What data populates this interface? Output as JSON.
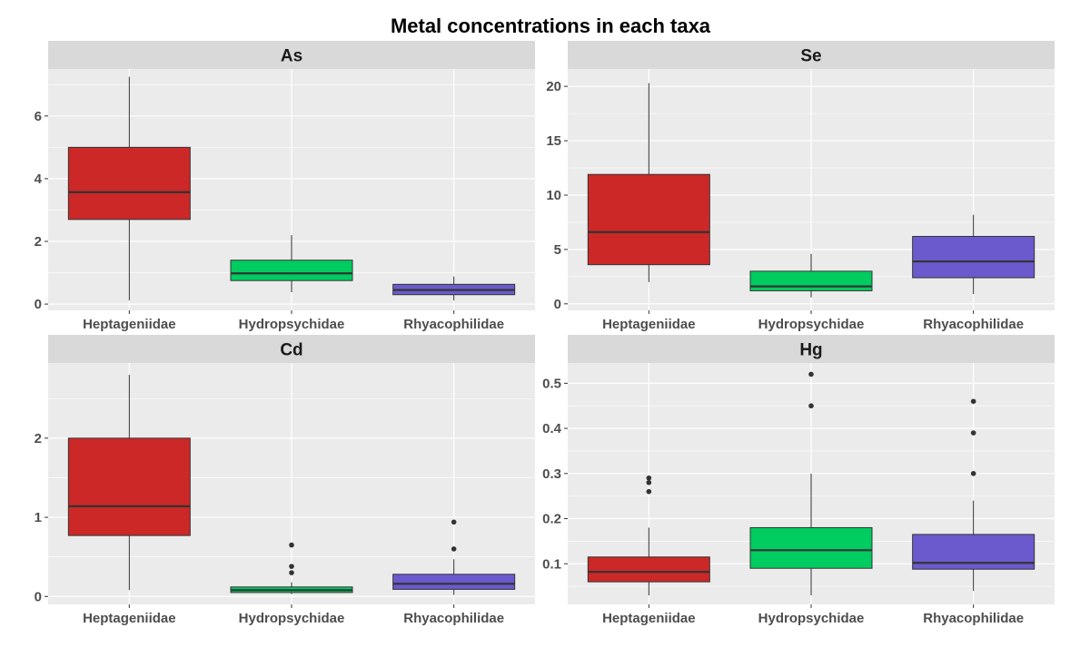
{
  "chart_data": {
    "type": "boxplot",
    "title": "Metal concentrations in each taxa",
    "categories": [
      "Heptageniidae",
      "Hydropsychidae",
      "Rhyacophilidae"
    ],
    "colors": [
      "#cc2828",
      "#00cc60",
      "#6a5acd"
    ],
    "grid": true,
    "facets": [
      {
        "name": "As",
        "ylim": [
          -0.2,
          7.5
        ],
        "yticks": [
          0,
          2,
          4,
          6
        ],
        "boxes": [
          {
            "min": 0.12,
            "q1": 2.7,
            "median": 3.57,
            "q3": 5.0,
            "max": 7.25,
            "outliers": []
          },
          {
            "min": 0.38,
            "q1": 0.75,
            "median": 0.98,
            "q3": 1.4,
            "max": 2.2,
            "outliers": []
          },
          {
            "min": 0.12,
            "q1": 0.3,
            "median": 0.45,
            "q3": 0.63,
            "max": 0.88,
            "outliers": []
          }
        ]
      },
      {
        "name": "Se",
        "ylim": [
          -0.6,
          21.6
        ],
        "yticks": [
          0,
          5,
          10,
          15,
          20
        ],
        "boxes": [
          {
            "min": 2.0,
            "q1": 3.6,
            "median": 6.6,
            "q3": 11.9,
            "max": 20.3,
            "outliers": []
          },
          {
            "min": 0.6,
            "q1": 1.2,
            "median": 1.6,
            "q3": 3.0,
            "max": 4.6,
            "outliers": []
          },
          {
            "min": 0.9,
            "q1": 2.4,
            "median": 3.9,
            "q3": 6.2,
            "max": 8.2,
            "outliers": []
          }
        ]
      },
      {
        "name": "Cd",
        "ylim": [
          -0.1,
          2.95
        ],
        "yticks": [
          0,
          1,
          2
        ],
        "boxes": [
          {
            "min": 0.08,
            "q1": 0.77,
            "median": 1.14,
            "q3": 2.0,
            "max": 2.8,
            "outliers": []
          },
          {
            "min": 0.03,
            "q1": 0.05,
            "median": 0.08,
            "q3": 0.12,
            "max": 0.18,
            "outliers": [
              0.3,
              0.38,
              0.65
            ]
          },
          {
            "min": 0.02,
            "q1": 0.09,
            "median": 0.16,
            "q3": 0.28,
            "max": 0.47,
            "outliers": [
              0.6,
              0.94
            ]
          }
        ]
      },
      {
        "name": "Hg",
        "ylim": [
          0.01,
          0.545
        ],
        "yticks": [
          0.1,
          0.2,
          0.3,
          0.4,
          0.5
        ],
        "yticklabels": [
          "0.1",
          "0.2",
          "0.3",
          "0.4",
          "0.5"
        ],
        "boxes": [
          {
            "min": 0.03,
            "q1": 0.06,
            "median": 0.082,
            "q3": 0.115,
            "max": 0.18,
            "outliers": [
              0.26,
              0.28,
              0.29
            ]
          },
          {
            "min": 0.03,
            "q1": 0.09,
            "median": 0.13,
            "q3": 0.18,
            "max": 0.3,
            "outliers": [
              0.45,
              0.52
            ]
          },
          {
            "min": 0.04,
            "q1": 0.088,
            "median": 0.102,
            "q3": 0.165,
            "max": 0.24,
            "outliers": [
              0.3,
              0.39,
              0.46
            ]
          }
        ]
      }
    ]
  }
}
